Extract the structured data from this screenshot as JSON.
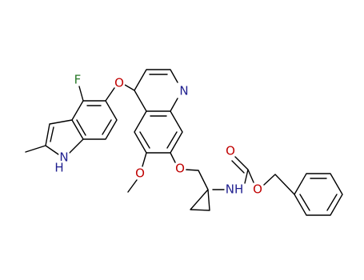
{
  "molecule": {
    "atom_labels": [
      "F",
      "O",
      "N",
      "N",
      "H",
      "O",
      "O",
      "O",
      "NH",
      "O"
    ]
  }
}
